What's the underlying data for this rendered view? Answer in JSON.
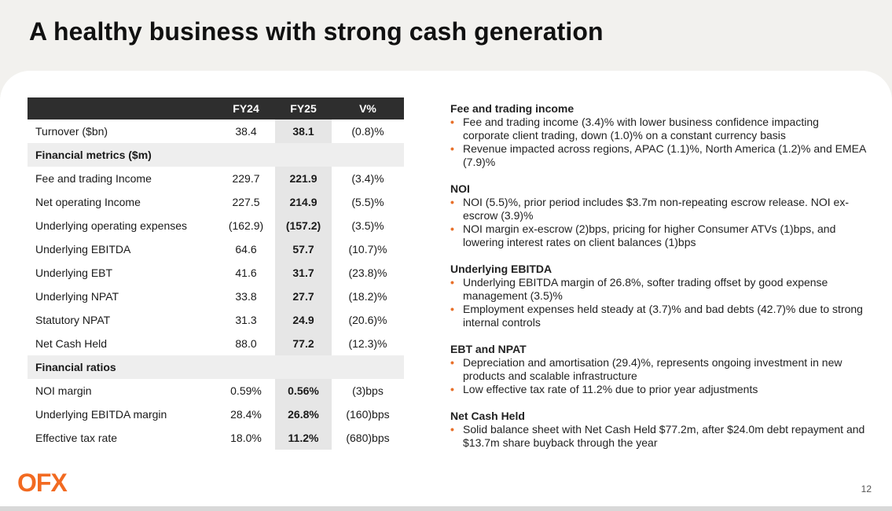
{
  "title": "A healthy business with strong cash generation",
  "table": {
    "headers": [
      "",
      "FY24",
      "FY25",
      "V%"
    ],
    "rows": [
      {
        "type": "data",
        "label": "Turnover ($bn)",
        "fy24": "38.4",
        "fy25": "38.1",
        "v": "(0.8)%"
      },
      {
        "type": "section",
        "label": "Financial metrics ($m)"
      },
      {
        "type": "data",
        "label": "Fee and trading Income",
        "fy24": "229.7",
        "fy25": "221.9",
        "v": "(3.4)%"
      },
      {
        "type": "data",
        "label": "Net operating Income",
        "fy24": "227.5",
        "fy25": "214.9",
        "v": "(5.5)%"
      },
      {
        "type": "data",
        "label": "Underlying operating expenses",
        "fy24": "(162.9)",
        "fy25": "(157.2)",
        "v": "(3.5)%"
      },
      {
        "type": "data",
        "label": "Underlying EBITDA",
        "fy24": "64.6",
        "fy25": "57.7",
        "v": "(10.7)%"
      },
      {
        "type": "data",
        "label": "Underlying EBT",
        "fy24": "41.6",
        "fy25": "31.7",
        "v": "(23.8)%"
      },
      {
        "type": "data",
        "label": "Underlying NPAT",
        "fy24": "33.8",
        "fy25": "27.7",
        "v": "(18.2)%"
      },
      {
        "type": "data",
        "label": "Statutory NPAT",
        "fy24": "31.3",
        "fy25": "24.9",
        "v": "(20.6)%"
      },
      {
        "type": "data",
        "label": "Net Cash Held",
        "fy24": "88.0",
        "fy25": "77.2",
        "v": "(12.3)%"
      },
      {
        "type": "section",
        "label": "Financial ratios"
      },
      {
        "type": "data",
        "label": "NOI margin",
        "fy24": "0.59%",
        "fy25": "0.56%",
        "v": "(3)bps"
      },
      {
        "type": "data",
        "label": "Underlying EBITDA margin",
        "fy24": "28.4%",
        "fy25": "26.8%",
        "v": "(160)bps"
      },
      {
        "type": "data",
        "label": "Effective tax rate",
        "fy24": "18.0%",
        "fy25": "11.2%",
        "v": "(680)bps"
      }
    ]
  },
  "commentary": [
    {
      "heading": "Fee and trading income",
      "bullets": [
        "Fee and trading income (3.4)% with lower business confidence impacting corporate client trading, down (1.0)% on a constant currency basis",
        "Revenue impacted across regions, APAC (1.1)%, North America (1.2)% and EMEA (7.9)%"
      ]
    },
    {
      "heading": "NOI",
      "bullets": [
        "NOI (5.5)%, prior period includes $3.7m non-repeating escrow release. NOI ex-escrow (3.9)%",
        "NOI margin ex-escrow (2)bps, pricing for higher Consumer ATVs (1)bps, and lowering interest rates on client balances (1)bps"
      ]
    },
    {
      "heading": "Underlying EBITDA",
      "bullets": [
        "Underlying EBITDA margin of 26.8%, softer trading offset by good expense management (3.5)%",
        "Employment expenses held steady at (3.7)% and bad debts (42.7)% due to strong internal controls"
      ]
    },
    {
      "heading": "EBT and NPAT",
      "bullets": [
        "Depreciation and amortisation (29.4)%, represents ongoing investment in new products and scalable infrastructure",
        "Low effective tax rate of 11.2% due to prior year adjustments"
      ]
    },
    {
      "heading": "Net Cash Held",
      "bullets": [
        "Solid balance sheet with Net Cash Held $77.2m, after $24.0m debt repayment and $13.7m share buyback through the year"
      ]
    }
  ],
  "bullet_char": "•",
  "logo_text": "OFX",
  "page_number": "12",
  "colors": {
    "accent": "#f26a21",
    "header_bg": "#2e2e2e",
    "highlight": "#e6e6e6"
  }
}
